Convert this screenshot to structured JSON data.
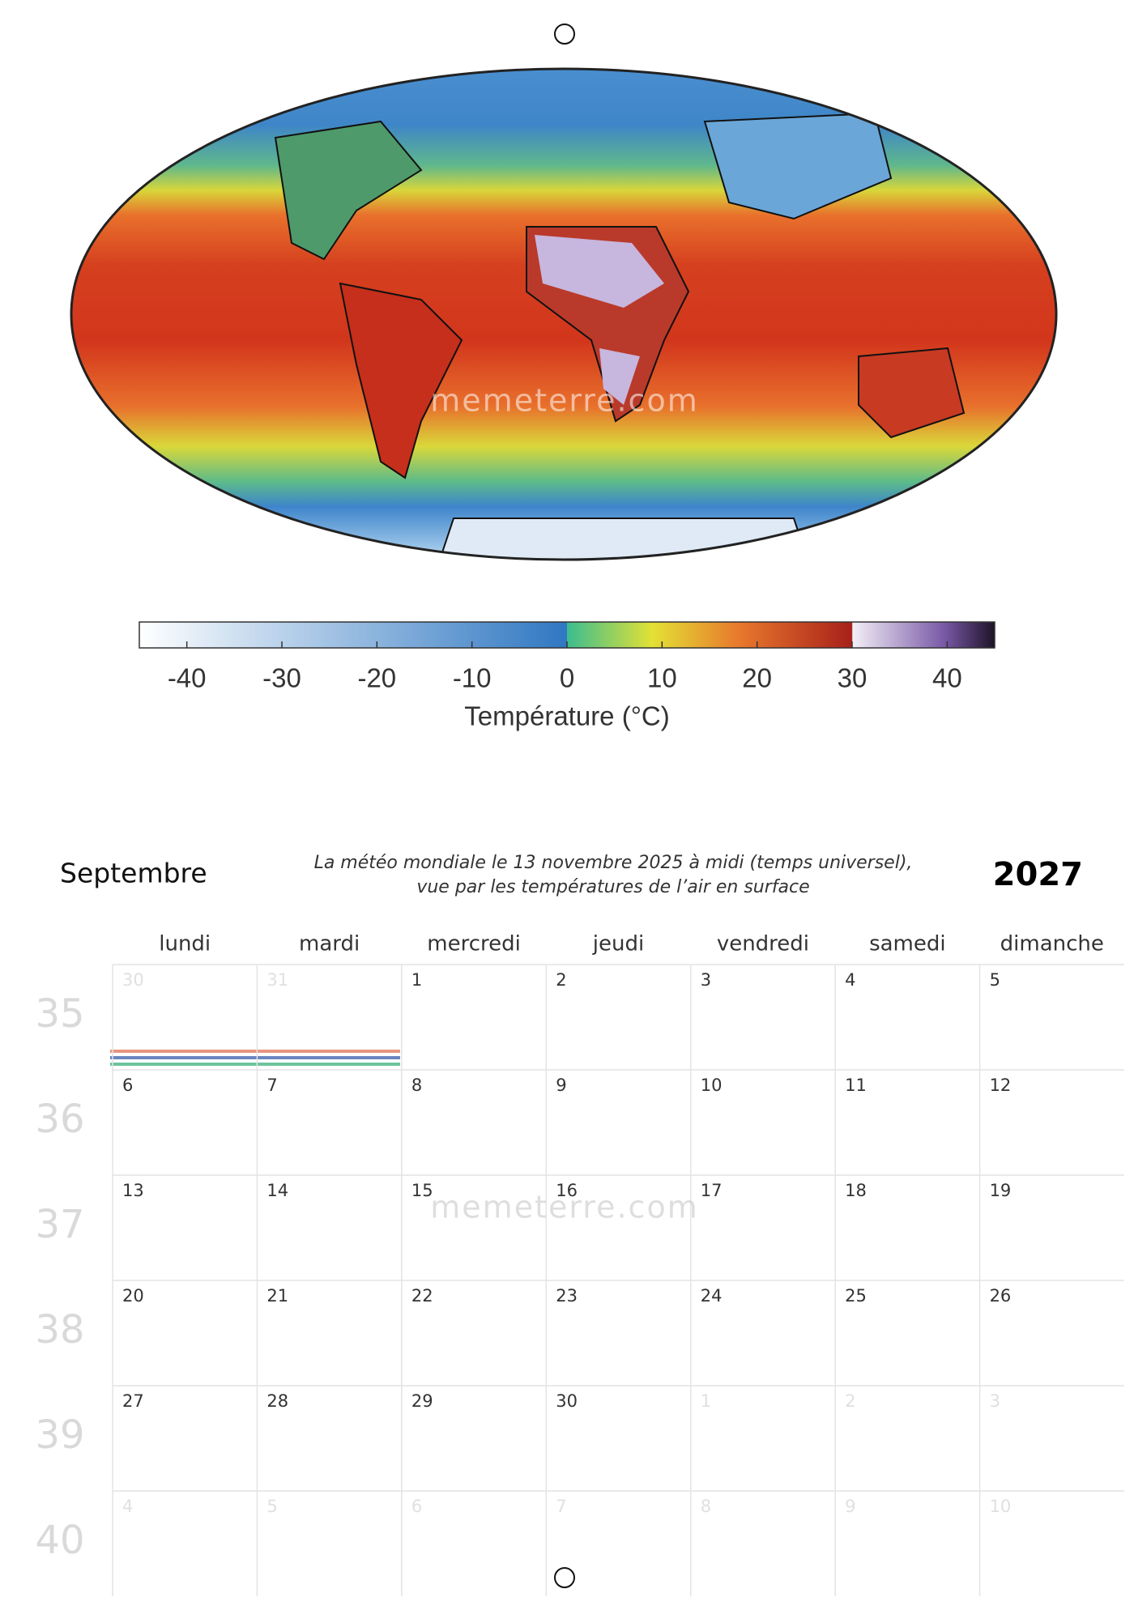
{
  "map": {
    "watermark": "memeterre.com"
  },
  "colorbar": {
    "lim": [
      -45,
      45
    ],
    "ticks": [
      -40,
      -30,
      -20,
      -10,
      0,
      10,
      20,
      30,
      40
    ],
    "label": "Température (°C)"
  },
  "calendar": {
    "month": "Septembre",
    "caption": [
      "La météo mondiale le 13 novembre 2025 à midi (temps universel),",
      "vue par les températures de l’air en surface"
    ],
    "year": "2027",
    "watermark": "memeterre.com",
    "weekdays": [
      "lundi",
      "mardi",
      "mercredi",
      "jeudi",
      "vendredi",
      "samedi",
      "dimanche"
    ],
    "weeks": [
      {
        "number": 35,
        "days": [
          {
            "day": 30,
            "muted": true
          },
          {
            "day": 31,
            "muted": true
          },
          {
            "day": 1,
            "muted": false
          },
          {
            "day": 2,
            "muted": false
          },
          {
            "day": 3,
            "muted": false
          },
          {
            "day": 4,
            "muted": false
          },
          {
            "day": 5,
            "muted": false
          }
        ]
      },
      {
        "number": 36,
        "days": [
          {
            "day": 6,
            "muted": false
          },
          {
            "day": 7,
            "muted": false
          },
          {
            "day": 8,
            "muted": false
          },
          {
            "day": 9,
            "muted": false
          },
          {
            "day": 10,
            "muted": false
          },
          {
            "day": 11,
            "muted": false
          },
          {
            "day": 12,
            "muted": false
          }
        ]
      },
      {
        "number": 37,
        "days": [
          {
            "day": 13,
            "muted": false
          },
          {
            "day": 14,
            "muted": false
          },
          {
            "day": 15,
            "muted": false
          },
          {
            "day": 16,
            "muted": false
          },
          {
            "day": 17,
            "muted": false
          },
          {
            "day": 18,
            "muted": false
          },
          {
            "day": 19,
            "muted": false
          }
        ]
      },
      {
        "number": 38,
        "days": [
          {
            "day": 20,
            "muted": false
          },
          {
            "day": 21,
            "muted": false
          },
          {
            "day": 22,
            "muted": false
          },
          {
            "day": 23,
            "muted": false
          },
          {
            "day": 24,
            "muted": false
          },
          {
            "day": 25,
            "muted": false
          },
          {
            "day": 26,
            "muted": false
          }
        ]
      },
      {
        "number": 39,
        "days": [
          {
            "day": 27,
            "muted": false
          },
          {
            "day": 28,
            "muted": false
          },
          {
            "day": 29,
            "muted": false
          },
          {
            "day": 30,
            "muted": false
          },
          {
            "day": 1,
            "muted": true
          },
          {
            "day": 2,
            "muted": true
          },
          {
            "day": 3,
            "muted": true
          }
        ]
      },
      {
        "number": 40,
        "days": [
          {
            "day": 4,
            "muted": true
          },
          {
            "day": 5,
            "muted": true
          },
          {
            "day": 6,
            "muted": true
          },
          {
            "day": 7,
            "muted": true
          },
          {
            "day": 8,
            "muted": true
          },
          {
            "day": 9,
            "muted": true
          },
          {
            "day": 10,
            "muted": true
          }
        ]
      }
    ]
  }
}
